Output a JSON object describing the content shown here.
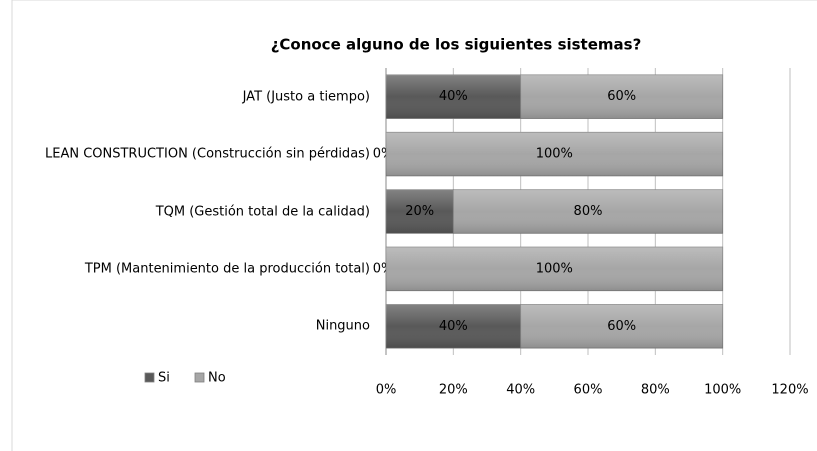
{
  "chart_data": {
    "type": "stacked-bar-horizontal",
    "title": "¿Conoce alguno de los siguientes sistemas?",
    "categories": [
      "JAT (Justo a tiempo)",
      "LEAN CONSTRUCTION (Construcción sin pérdidas)",
      "TQM (Gestión total de la calidad)",
      "TPM (Mantenimiento de la producción total)",
      "Ninguno"
    ],
    "series": [
      {
        "name": "Si",
        "color": "#595959",
        "values": [
          40,
          0,
          20,
          0,
          40
        ],
        "value_labels": [
          "40%",
          "0%",
          "20%",
          "0%",
          "40%"
        ]
      },
      {
        "name": "No",
        "color": "#a6a6a6",
        "values": [
          60,
          100,
          80,
          100,
          60
        ],
        "value_labels": [
          "60%",
          "100%",
          "80%",
          "100%",
          "60%"
        ]
      }
    ],
    "xlim": [
      0,
      120
    ],
    "xticks": [
      {
        "value": 0,
        "label": "0%"
      },
      {
        "value": 20,
        "label": "20%"
      },
      {
        "value": 40,
        "label": "40%"
      },
      {
        "value": 60,
        "label": "60%"
      },
      {
        "value": 80,
        "label": "80%"
      },
      {
        "value": 100,
        "label": "100%"
      },
      {
        "value": 120,
        "label": "120%"
      }
    ],
    "grid": true,
    "legend": "left"
  }
}
